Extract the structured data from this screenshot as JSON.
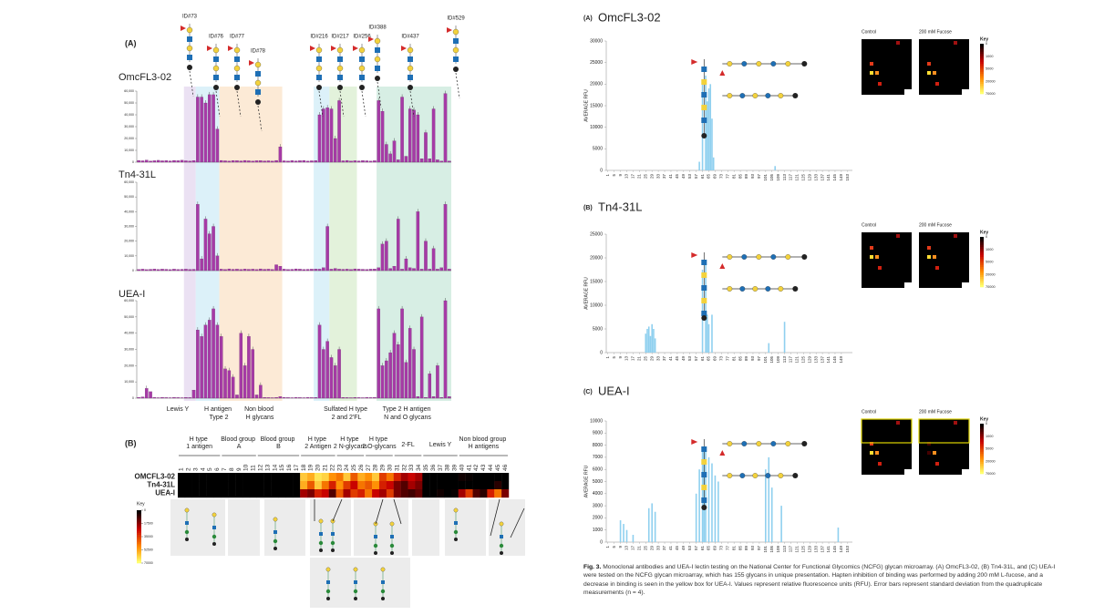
{
  "chart_data": [
    {
      "type": "bar",
      "name": "OmcFL3-02",
      "color": "#a63aa6",
      "ylim": [
        0,
        60000
      ],
      "yticks": [
        0,
        {
          "value": 10000,
          "label": "10,000"
        },
        {
          "value": 20000,
          "label": "20,000"
        },
        {
          "value": 30000,
          "label": "30,000"
        },
        {
          "value": 40000,
          "label": "40,000"
        },
        {
          "value": 50000,
          "label": "50,000"
        },
        {
          "value": 60000,
          "label": "60,000"
        }
      ],
      "values": [
        1500,
        1200,
        1800,
        1000,
        1300,
        1600,
        1200,
        1400,
        1100,
        1500,
        1300,
        1700,
        1200,
        1000,
        1400,
        55000,
        55000,
        50000,
        57000,
        57000,
        28000,
        1500,
        1200,
        1000,
        1400,
        1300,
        1100,
        1500,
        1200,
        1000,
        1300,
        1400,
        1100,
        1200,
        1000,
        1500,
        13000,
        1200,
        1000,
        1400,
        1100,
        1300,
        1500,
        1000,
        1200,
        1400,
        40000,
        45000,
        46000,
        45000,
        20000,
        52000,
        1200,
        1500,
        1000,
        1300,
        1100,
        1400,
        1200,
        1000,
        1300,
        52000,
        43000,
        15000,
        7000,
        18000,
        2000,
        55000,
        5000,
        45000,
        44000,
        40000,
        3000,
        25000,
        3000,
        45000,
        2000,
        1000,
        58000,
        1000
      ]
    },
    {
      "type": "bar",
      "name": "Tn4-31L",
      "color": "#a63aa6",
      "ylim": [
        0,
        60000
      ],
      "yticks": [
        0,
        {
          "value": 10000,
          "label": "10,000"
        },
        {
          "value": 20000,
          "label": "20,000"
        },
        {
          "value": 30000,
          "label": "30,000"
        },
        {
          "value": 40000,
          "label": "40,000"
        },
        {
          "value": 50000,
          "label": "50,000"
        },
        {
          "value": 60000,
          "label": "60,000"
        }
      ],
      "values": [
        800,
        1000,
        700,
        900,
        1100,
        800,
        1000,
        900,
        700,
        1000,
        800,
        900,
        1000,
        800,
        900,
        45000,
        8000,
        35000,
        25000,
        30000,
        10000,
        1000,
        800,
        1200,
        900,
        1000,
        800,
        1100,
        900,
        1000,
        800,
        1200,
        900,
        1000,
        800,
        4000,
        3000,
        1000,
        800,
        900,
        1200,
        1000,
        800,
        900,
        1000,
        1100,
        1000,
        2000,
        30000,
        1000,
        1500,
        1000,
        900,
        1000,
        800,
        1200,
        1000,
        900,
        800,
        1000,
        1100,
        2000,
        18000,
        20000,
        1500,
        3000,
        35000,
        1000,
        8000,
        2000,
        1500,
        40000,
        1000,
        20000,
        1000,
        15000,
        1000,
        2000,
        45000,
        1000
      ]
    },
    {
      "type": "bar",
      "name": "UEA-I",
      "color": "#a63aa6",
      "ylim": [
        0,
        60000
      ],
      "yticks": [
        0,
        {
          "value": 10000,
          "label": "10,000"
        },
        {
          "value": 20000,
          "label": "20,000"
        },
        {
          "value": 30000,
          "label": "30,000"
        },
        {
          "value": 40000,
          "label": "40,000"
        },
        {
          "value": 50000,
          "label": "50,000"
        },
        {
          "value": 60000,
          "label": "60,000"
        }
      ],
      "values": [
        500,
        800,
        6000,
        4000,
        500,
        300,
        500,
        400,
        300,
        500,
        400,
        300,
        500,
        400,
        5000,
        42000,
        38000,
        45000,
        48000,
        55000,
        45000,
        38000,
        18000,
        17000,
        13000,
        2000,
        40000,
        20000,
        38000,
        30000,
        2000,
        8000,
        500,
        400,
        300,
        500,
        1000,
        500,
        400,
        300,
        500,
        400,
        300,
        500,
        400,
        500,
        45000,
        30000,
        35000,
        25000,
        20000,
        30000,
        500,
        400,
        300,
        500,
        400,
        300,
        500,
        400,
        500,
        55000,
        20000,
        23000,
        28000,
        40000,
        33000,
        55000,
        22000,
        43000,
        30000,
        1000,
        50000,
        500,
        15000,
        1000,
        20000,
        500,
        60000,
        1000
      ]
    },
    {
      "type": "heatmap",
      "rows": [
        "OMCFL3-02",
        "Tn4-31L",
        "UEA-I"
      ],
      "columns": [
        1,
        2,
        3,
        4,
        5,
        6,
        7,
        8,
        9,
        10,
        11,
        12,
        13,
        14,
        15,
        16,
        17,
        18,
        19,
        20,
        21,
        22,
        23,
        24,
        25,
        26,
        27,
        28,
        29,
        30,
        31,
        32,
        33,
        34,
        35,
        36,
        37,
        38,
        39,
        40,
        41,
        42,
        43,
        44,
        45,
        46
      ],
      "groups": [
        {
          "label": "H type 1 antigen",
          "columns": [
            1,
            6
          ]
        },
        {
          "label": "Blood group A",
          "columns": [
            7,
            11
          ]
        },
        {
          "label": "Blood group B",
          "columns": [
            12,
            17
          ]
        },
        {
          "label": "H type 2 Antigen",
          "columns": [
            18,
            22
          ]
        },
        {
          "label": "H type 2 N-glycans",
          "columns": [
            23,
            26
          ]
        },
        {
          "label": "H type 2 O-glycans",
          "columns": [
            27,
            30
          ]
        },
        {
          "label": "2-FL",
          "columns": [
            31,
            34
          ]
        },
        {
          "label": "Lewis Y",
          "columns": [
            35,
            39
          ]
        },
        {
          "label": "Non blood group H antigens",
          "columns": [
            40,
            46
          ]
        }
      ],
      "zlim": [
        0,
        70000
      ],
      "key_title": "Key",
      "key_ticks": [
        0,
        17500,
        35000,
        52500,
        70000
      ],
      "values": [
        [
          0,
          0,
          0,
          0,
          0,
          0,
          0,
          0,
          0,
          0,
          0,
          0,
          0,
          0,
          0,
          0,
          0,
          60000,
          55000,
          65000,
          62000,
          50000,
          45000,
          60000,
          40000,
          55000,
          50000,
          60000,
          35000,
          45000,
          30000,
          20000,
          25000,
          20000,
          0,
          0,
          0,
          0,
          0,
          2000,
          1000,
          0,
          0,
          0,
          0,
          0
        ],
        [
          0,
          0,
          0,
          0,
          0,
          0,
          0,
          0,
          0,
          0,
          0,
          0,
          0,
          0,
          0,
          0,
          0,
          55000,
          40000,
          60000,
          45000,
          30000,
          50000,
          35000,
          25000,
          45000,
          40000,
          50000,
          30000,
          25000,
          15000,
          10000,
          20000,
          15000,
          0,
          0,
          0,
          0,
          0,
          0,
          0,
          0,
          0,
          0,
          5000,
          0
        ],
        [
          0,
          0,
          0,
          0,
          0,
          0,
          0,
          0,
          0,
          0,
          0,
          0,
          0,
          0,
          0,
          0,
          0,
          20000,
          15000,
          30000,
          25000,
          10000,
          40000,
          20000,
          35000,
          30000,
          45000,
          25000,
          20000,
          35000,
          15000,
          10000,
          8000,
          12000,
          0,
          0,
          2000,
          0,
          1000,
          20000,
          35000,
          10000,
          5000,
          30000,
          45000,
          15000
        ]
      ]
    },
    {
      "type": "bar",
      "panel": "(A)",
      "title": "OmcFL3-02",
      "y_label": "AVERAGE RFU",
      "color": "#8fd0ef",
      "xlim": [
        0,
        156
      ],
      "ylim": [
        0,
        30000
      ],
      "yticks": [
        0,
        5000,
        10000,
        15000,
        20000,
        25000,
        30000
      ],
      "xticks": [
        1,
        5,
        9,
        13,
        17,
        21,
        25,
        29,
        33,
        37,
        41,
        45,
        49,
        53,
        57,
        61,
        65,
        69,
        73,
        77,
        81,
        85,
        89,
        93,
        97,
        101,
        105,
        109,
        113,
        117,
        121,
        125,
        129,
        133,
        137,
        141,
        145,
        149,
        153
      ],
      "x": [
        59,
        61,
        63,
        64,
        65,
        66,
        67,
        68,
        107
      ],
      "values": [
        2000,
        21000,
        22000,
        16000,
        19000,
        20000,
        12000,
        3000,
        1000
      ],
      "inset": {
        "labels": [
          "Control",
          "200 mM Fucose"
        ],
        "key_title": "Key",
        "key_ticks": [
          0,
          1000,
          5000,
          20000,
          70000
        ]
      }
    },
    {
      "type": "bar",
      "panel": "(B)",
      "title": "Tn4-31L",
      "y_label": "AVERAGE RFU",
      "color": "#8fd0ef",
      "xlim": [
        0,
        156
      ],
      "ylim": [
        0,
        25000
      ],
      "yticks": [
        0,
        5000,
        10000,
        15000,
        20000,
        25000
      ],
      "xticks": [
        1,
        5,
        9,
        13,
        17,
        21,
        25,
        29,
        33,
        37,
        41,
        45,
        49,
        53,
        57,
        61,
        65,
        69,
        73,
        77,
        81,
        85,
        89,
        93,
        97,
        101,
        105,
        109,
        113,
        117,
        121,
        125,
        129,
        133,
        137,
        141,
        145,
        149
      ],
      "x": [
        25,
        26,
        27,
        28,
        29,
        30,
        31,
        61,
        63,
        64,
        65,
        67,
        103,
        113
      ],
      "values": [
        4000,
        5000,
        5500,
        3500,
        6000,
        5000,
        3000,
        17500,
        19000,
        8000,
        6000,
        8000,
        2000,
        6500
      ],
      "inset": {
        "labels": [
          "Control",
          "200 mM Fucose"
        ],
        "key_title": "Key",
        "key_ticks": [
          0,
          1000,
          5000,
          20000,
          70000
        ]
      }
    },
    {
      "type": "bar",
      "panel": "(C)",
      "title": "UEA-I",
      "y_label": "AVERAGE RFU",
      "color": "#8fd0ef",
      "xlim": [
        0,
        156
      ],
      "ylim": [
        0,
        10000
      ],
      "yticks": [
        0,
        1000,
        2000,
        3000,
        4000,
        5000,
        6000,
        7000,
        8000,
        9000,
        10000
      ],
      "xticks": [
        1,
        5,
        9,
        13,
        17,
        21,
        25,
        29,
        33,
        37,
        41,
        45,
        49,
        53,
        57,
        61,
        65,
        69,
        73,
        77,
        81,
        85,
        89,
        93,
        97,
        101,
        105,
        109,
        113,
        117,
        121,
        125,
        129,
        133,
        137,
        141,
        145,
        149,
        153
      ],
      "x": [
        9,
        11,
        13,
        17,
        27,
        29,
        31,
        57,
        59,
        61,
        62,
        63,
        65,
        67,
        69,
        71,
        101,
        103,
        105,
        111,
        147
      ],
      "values": [
        1800,
        1500,
        1000,
        600,
        2800,
        3200,
        2500,
        4000,
        6000,
        7800,
        7500,
        7500,
        7000,
        6500,
        5500,
        5000,
        6000,
        7000,
        4500,
        3000,
        1200
      ],
      "inset": {
        "labels": [
          "Control",
          "200 mM Fucose"
        ],
        "key_title": "Key",
        "key_ticks": [
          0,
          1000,
          5000,
          20000,
          70000
        ]
      }
    }
  ],
  "left_figure": {
    "panel_a": "(A)",
    "panel_b": "(B)",
    "glycan_ids": [
      "ID#73",
      "ID#76",
      "ID#77",
      "ID#78",
      "ID#216",
      "ID#217",
      "ID#256",
      "ID#388",
      "ID#437",
      "ID#529"
    ],
    "band_labels": [
      "Lewis Y",
      "H antigen Type 2",
      "Non blood H glycans",
      "Sulfated H type 2 and 2'FL",
      "Type 2 H antigen N and O glycans"
    ]
  },
  "caption": {
    "label": "Fig. 3.",
    "text": "Monoclonal antibodies and UEA-I lectin testing on the National Center for Functional Glycomics (NCFG) glycan microarray. (A) OmcFL3-02, (B) Tn4-31L, and (C) UEA-I were tested on the NCFG glycan microarray, which has 155 glycans in unique presentation. Hapten inhibition of binding was performed by adding 200 mM L-fucose, and a decrease in binding is seen in the yellow box for UEA-I. Values represent relative fluorescence units (RFU). Error bars represent standard deviation from the quadruplicate measurements (n = 4)."
  }
}
